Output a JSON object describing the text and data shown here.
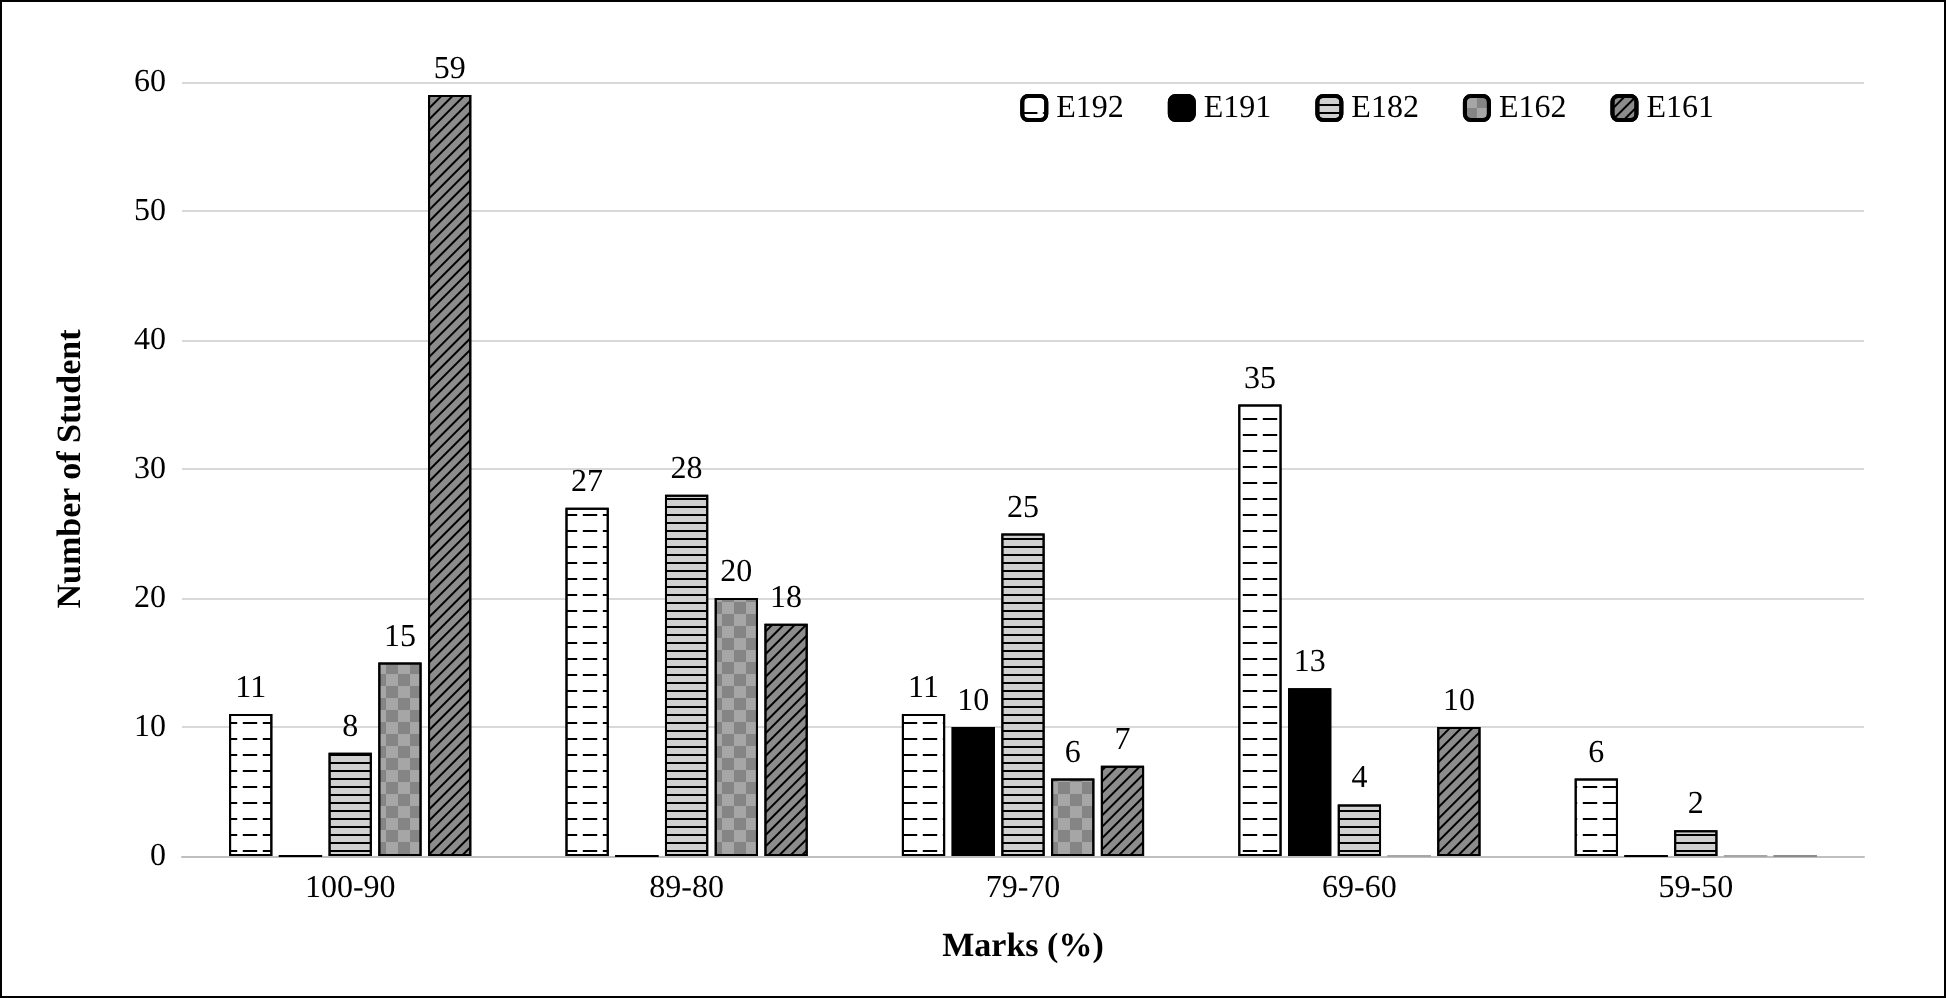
{
  "chart_data": {
    "type": "bar",
    "xlabel": "Marks (%)",
    "ylabel": "Number of Student",
    "categories": [
      "100-90",
      "89-80",
      "79-70",
      "69-60",
      "59-50"
    ],
    "series": [
      {
        "name": "E192",
        "color": "#ffffff",
        "values": [
          11,
          27,
          11,
          35,
          6
        ],
        "value_labels": [
          "11",
          "27",
          "11",
          "35",
          "6"
        ]
      },
      {
        "name": "E191",
        "color": "#000000",
        "values": [
          0,
          0,
          10,
          13,
          0
        ],
        "value_labels": [
          null,
          null,
          "10",
          "13",
          null
        ]
      },
      {
        "name": "E182",
        "color": "#d0d0d0",
        "values": [
          8,
          28,
          25,
          4,
          2
        ],
        "value_labels": [
          "8",
          "28",
          "25",
          "4",
          "2"
        ]
      },
      {
        "name": "E162",
        "color": "#a6a6a6",
        "values": [
          15,
          20,
          6,
          0,
          0
        ],
        "value_labels": [
          "15",
          "20",
          "6",
          null,
          null
        ]
      },
      {
        "name": "E161",
        "color": "#8c8c8c",
        "values": [
          59,
          18,
          7,
          10,
          0
        ],
        "value_labels": [
          "59",
          "18",
          "7",
          "10",
          null
        ]
      }
    ],
    "ylim": [
      0,
      60
    ],
    "yticks": [
      0,
      10,
      20,
      30,
      40,
      50,
      60
    ],
    "grid": "y",
    "legend": "top right"
  }
}
